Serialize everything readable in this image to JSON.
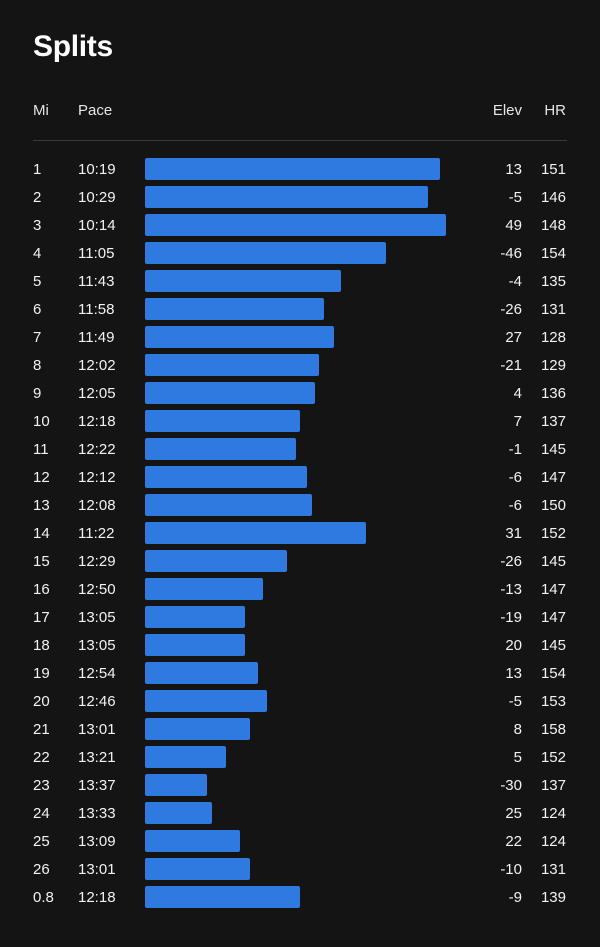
{
  "title": "Splits",
  "columns": {
    "mi": "Mi",
    "pace": "Pace",
    "elev": "Elev",
    "hr": "HR"
  },
  "colors": {
    "background": "#141414",
    "bar": "#2f7ae0",
    "text": "#ffffff"
  },
  "splits": [
    {
      "mi": "1",
      "pace": "10:19",
      "elev": "13",
      "hr": "151"
    },
    {
      "mi": "2",
      "pace": "10:29",
      "elev": "-5",
      "hr": "146"
    },
    {
      "mi": "3",
      "pace": "10:14",
      "elev": "49",
      "hr": "148"
    },
    {
      "mi": "4",
      "pace": "11:05",
      "elev": "-46",
      "hr": "154"
    },
    {
      "mi": "5",
      "pace": "11:43",
      "elev": "-4",
      "hr": "135"
    },
    {
      "mi": "6",
      "pace": "11:58",
      "elev": "-26",
      "hr": "131"
    },
    {
      "mi": "7",
      "pace": "11:49",
      "elev": "27",
      "hr": "128"
    },
    {
      "mi": "8",
      "pace": "12:02",
      "elev": "-21",
      "hr": "129"
    },
    {
      "mi": "9",
      "pace": "12:05",
      "elev": "4",
      "hr": "136"
    },
    {
      "mi": "10",
      "pace": "12:18",
      "elev": "7",
      "hr": "137"
    },
    {
      "mi": "11",
      "pace": "12:22",
      "elev": "-1",
      "hr": "145"
    },
    {
      "mi": "12",
      "pace": "12:12",
      "elev": "-6",
      "hr": "147"
    },
    {
      "mi": "13",
      "pace": "12:08",
      "elev": "-6",
      "hr": "150"
    },
    {
      "mi": "14",
      "pace": "11:22",
      "elev": "31",
      "hr": "152"
    },
    {
      "mi": "15",
      "pace": "12:29",
      "elev": "-26",
      "hr": "145"
    },
    {
      "mi": "16",
      "pace": "12:50",
      "elev": "-13",
      "hr": "147"
    },
    {
      "mi": "17",
      "pace": "13:05",
      "elev": "-19",
      "hr": "147"
    },
    {
      "mi": "18",
      "pace": "13:05",
      "elev": "20",
      "hr": "145"
    },
    {
      "mi": "19",
      "pace": "12:54",
      "elev": "13",
      "hr": "154"
    },
    {
      "mi": "20",
      "pace": "12:46",
      "elev": "-5",
      "hr": "153"
    },
    {
      "mi": "21",
      "pace": "13:01",
      "elev": "8",
      "hr": "158"
    },
    {
      "mi": "22",
      "pace": "13:21",
      "elev": "5",
      "hr": "152"
    },
    {
      "mi": "23",
      "pace": "13:37",
      "elev": "-30",
      "hr": "137"
    },
    {
      "mi": "24",
      "pace": "13:33",
      "elev": "25",
      "hr": "124"
    },
    {
      "mi": "25",
      "pace": "13:09",
      "elev": "22",
      "hr": "124"
    },
    {
      "mi": "26",
      "pace": "13:01",
      "elev": "-10",
      "hr": "131"
    },
    {
      "mi": "0.8",
      "pace": "12:18",
      "elev": "-9",
      "hr": "139"
    }
  ]
}
